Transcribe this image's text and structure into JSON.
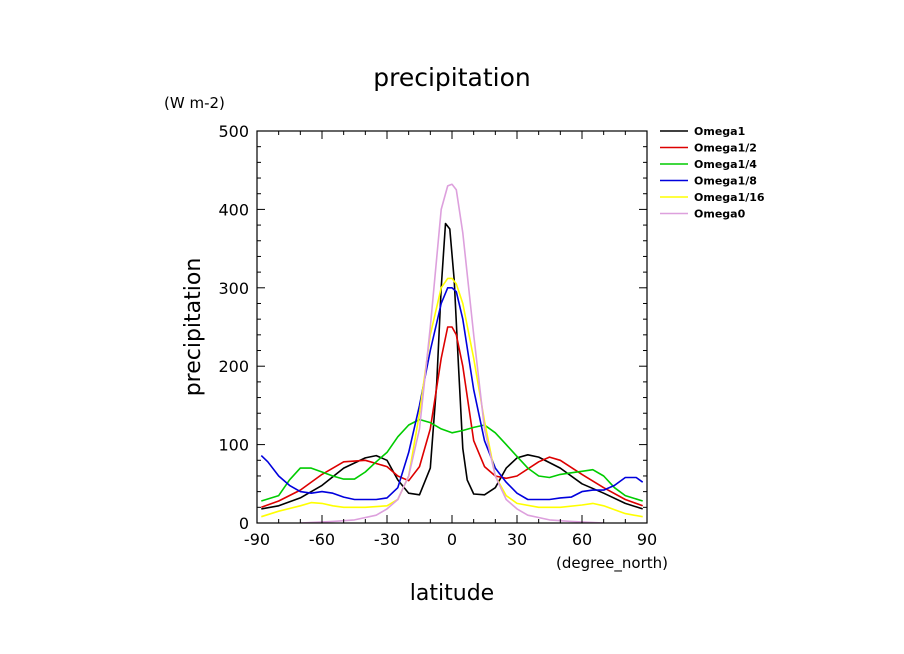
{
  "chart_data": {
    "type": "line",
    "title": "precipitation",
    "units": "(W m-2)",
    "ylabel": "precipitation",
    "xlabel": "latitude",
    "xunits": "(degree_north)",
    "xlim": [
      -90,
      90
    ],
    "ylim": [
      0,
      500
    ],
    "xticks": [
      -90,
      -60,
      -30,
      0,
      30,
      60,
      90
    ],
    "xtick_labels": [
      "-90",
      "-60",
      "-30",
      "0",
      "30",
      "60",
      "90"
    ],
    "yticks": [
      0,
      100,
      200,
      300,
      400,
      500
    ],
    "ytick_labels": [
      "0",
      "100",
      "200",
      "300",
      "400",
      "500"
    ],
    "legend_position": "right",
    "series": [
      {
        "name": "Omega1",
        "color": "#000000",
        "x": [
          -88,
          -80,
          -70,
          -60,
          -50,
          -40,
          -35,
          -30,
          -25,
          -20,
          -15,
          -10,
          -7,
          -5,
          -3,
          -1,
          1,
          3,
          5,
          7,
          10,
          15,
          20,
          25,
          30,
          35,
          40,
          50,
          60,
          70,
          80,
          88
        ],
        "y": [
          18,
          22,
          32,
          48,
          70,
          83,
          86,
          80,
          55,
          38,
          36,
          70,
          180,
          300,
          382,
          375,
          310,
          200,
          95,
          55,
          37,
          36,
          45,
          70,
          83,
          87,
          84,
          70,
          50,
          38,
          25,
          18
        ]
      },
      {
        "name": "Omega1/2",
        "color": "#dd0000",
        "x": [
          -88,
          -80,
          -70,
          -60,
          -50,
          -40,
          -30,
          -25,
          -20,
          -15,
          -10,
          -5,
          -2,
          0,
          2,
          5,
          10,
          15,
          20,
          25,
          30,
          40,
          45,
          50,
          60,
          70,
          80,
          88
        ],
        "y": [
          20,
          28,
          42,
          62,
          78,
          80,
          72,
          60,
          54,
          72,
          120,
          210,
          250,
          250,
          240,
          200,
          105,
          72,
          60,
          57,
          60,
          78,
          84,
          80,
          62,
          45,
          30,
          22
        ]
      },
      {
        "name": "Omega1/4",
        "color": "#00cc00",
        "x": [
          -88,
          -80,
          -75,
          -70,
          -65,
          -60,
          -55,
          -50,
          -45,
          -40,
          -35,
          -30,
          -25,
          -20,
          -15,
          -10,
          -5,
          0,
          5,
          10,
          15,
          20,
          25,
          30,
          35,
          40,
          45,
          50,
          55,
          60,
          65,
          70,
          75,
          80,
          88
        ],
        "y": [
          28,
          35,
          55,
          70,
          70,
          65,
          60,
          56,
          56,
          65,
          78,
          90,
          110,
          125,
          132,
          128,
          120,
          115,
          118,
          122,
          125,
          115,
          100,
          85,
          70,
          60,
          58,
          62,
          64,
          66,
          68,
          60,
          45,
          35,
          28
        ]
      },
      {
        "name": "Omega1/8",
        "color": "#0000dd",
        "x": [
          -88,
          -85,
          -80,
          -75,
          -70,
          -65,
          -60,
          -55,
          -50,
          -45,
          -40,
          -35,
          -30,
          -25,
          -20,
          -15,
          -10,
          -5,
          -2,
          0,
          2,
          5,
          10,
          15,
          20,
          25,
          30,
          35,
          40,
          45,
          50,
          55,
          60,
          65,
          70,
          75,
          80,
          85,
          88
        ],
        "y": [
          86,
          78,
          60,
          48,
          40,
          38,
          40,
          38,
          33,
          30,
          30,
          30,
          32,
          45,
          90,
          150,
          220,
          280,
          300,
          300,
          295,
          260,
          170,
          105,
          70,
          52,
          38,
          30,
          30,
          30,
          32,
          33,
          40,
          42,
          42,
          48,
          58,
          58,
          52
        ]
      },
      {
        "name": "Omega1/16",
        "color": "#ffff00",
        "x": [
          -88,
          -80,
          -70,
          -65,
          -60,
          -55,
          -50,
          -40,
          -30,
          -25,
          -20,
          -15,
          -10,
          -5,
          -2,
          0,
          2,
          5,
          10,
          15,
          20,
          25,
          30,
          40,
          50,
          60,
          65,
          70,
          80,
          88
        ],
        "y": [
          8,
          15,
          22,
          26,
          25,
          22,
          20,
          20,
          22,
          30,
          60,
          140,
          240,
          300,
          312,
          312,
          305,
          280,
          210,
          130,
          60,
          35,
          25,
          20,
          20,
          23,
          25,
          22,
          12,
          8
        ]
      },
      {
        "name": "Omega0",
        "color": "#dda0dd",
        "x": [
          -70,
          -55,
          -45,
          -35,
          -30,
          -25,
          -20,
          -15,
          -10,
          -5,
          -2,
          0,
          2,
          5,
          10,
          15,
          20,
          25,
          30,
          35,
          45,
          55,
          70
        ],
        "y": [
          0,
          2,
          4,
          10,
          18,
          30,
          60,
          120,
          250,
          400,
          430,
          432,
          425,
          370,
          240,
          120,
          60,
          30,
          18,
          10,
          4,
          2,
          0
        ]
      }
    ]
  }
}
